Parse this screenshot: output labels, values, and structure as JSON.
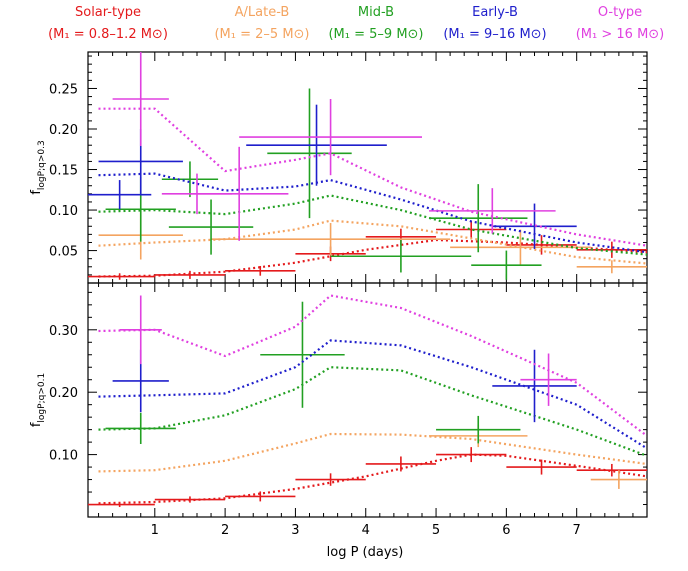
{
  "legend": [
    {
      "name": "Solar-type",
      "mass": "(M₁ = 0.8–1.2 M⊙)",
      "color": "#e41a1c"
    },
    {
      "name": "A/Late-B",
      "mass": "(M₁ = 2–5 M⊙)",
      "color": "#f4a460"
    },
    {
      "name": "Mid-B",
      "mass": "(M₁ = 5–9 M⊙)",
      "color": "#22a022"
    },
    {
      "name": "Early-B",
      "mass": "(M₁ = 9–16 M⊙)",
      "color": "#1f1fcc"
    },
    {
      "name": "O-type",
      "mass": "(M₁ > 16 M⊙)",
      "color": "#e040e0"
    }
  ],
  "chart_data": [
    {
      "type": "scatter",
      "panel": "top",
      "ylabel_main": "f",
      "ylabel_sub": "logP;q>0.3",
      "xlim": [
        0.05,
        8.0
      ],
      "ylim": [
        0.01,
        0.295
      ],
      "yticks": [
        0.05,
        0.1,
        0.15,
        0.2,
        0.25
      ],
      "ytick_labels": [
        "0.05",
        "0.10",
        "0.15",
        "0.20",
        "0.25"
      ],
      "series": [
        {
          "color": "#e41a1c",
          "curve": [
            [
              0.2,
              0.018
            ],
            [
              1.0,
              0.019
            ],
            [
              2.0,
              0.024
            ],
            [
              3.0,
              0.035
            ],
            [
              4.0,
              0.051
            ],
            [
              5.0,
              0.063
            ],
            [
              6.0,
              0.06
            ],
            [
              7.0,
              0.054
            ],
            [
              8.0,
              0.048
            ]
          ],
          "points": [
            {
              "x": 0.5,
              "y": 0.018,
              "xerr": 0.5,
              "yerr": 0.004
            },
            {
              "x": 1.5,
              "y": 0.02,
              "xerr": 0.5,
              "yerr": 0.005
            },
            {
              "x": 2.5,
              "y": 0.025,
              "xerr": 0.5,
              "yerr": 0.006
            },
            {
              "x": 3.5,
              "y": 0.046,
              "xerr": 0.5,
              "yerr": 0.009
            },
            {
              "x": 4.5,
              "y": 0.067,
              "xerr": 0.5,
              "yerr": 0.01
            },
            {
              "x": 5.5,
              "y": 0.076,
              "xerr": 0.5,
              "yerr": 0.011
            },
            {
              "x": 6.5,
              "y": 0.057,
              "xerr": 0.5,
              "yerr": 0.012
            },
            {
              "x": 7.5,
              "y": 0.051,
              "xerr": 0.5,
              "yerr": 0.01
            }
          ]
        },
        {
          "color": "#f4a460",
          "curve": [
            [
              0.2,
              0.056
            ],
            [
              1.0,
              0.06
            ],
            [
              2.0,
              0.064
            ],
            [
              3.0,
              0.076
            ],
            [
              3.5,
              0.087
            ],
            [
              4.5,
              0.08
            ],
            [
              5.5,
              0.065
            ],
            [
              7.0,
              0.042
            ],
            [
              8.0,
              0.034
            ]
          ],
          "points": [
            {
              "x": 0.8,
              "y": 0.069,
              "xerr": 0.6,
              "yerr": 0.03
            },
            {
              "x": 3.5,
              "y": 0.064,
              "xerr": 1.7,
              "yerr": 0.02
            },
            {
              "x": 6.2,
              "y": 0.054,
              "xerr": 1.0,
              "yerr": 0.022
            },
            {
              "x": 7.5,
              "y": 0.03,
              "xerr": 0.5,
              "yerr": 0.008
            }
          ]
        },
        {
          "color": "#22a022",
          "curve": [
            [
              0.2,
              0.098
            ],
            [
              1.0,
              0.1
            ],
            [
              2.0,
              0.095
            ],
            [
              3.0,
              0.108
            ],
            [
              3.5,
              0.118
            ],
            [
              4.5,
              0.1
            ],
            [
              5.5,
              0.076
            ],
            [
              7.0,
              0.053
            ],
            [
              8.0,
              0.045
            ]
          ],
          "points": [
            {
              "x": 0.8,
              "y": 0.101,
              "xerr": 0.5,
              "yerr": 0.04
            },
            {
              "x": 1.5,
              "y": 0.138,
              "xerr": 0.4,
              "yerr": 0.022
            },
            {
              "x": 1.8,
              "y": 0.079,
              "xerr": 0.6,
              "yerr": 0.034
            },
            {
              "x": 3.2,
              "y": 0.17,
              "xerr": 0.6,
              "yerr": 0.08
            },
            {
              "x": 4.5,
              "y": 0.043,
              "xerr": 1.0,
              "yerr": 0.02
            },
            {
              "x": 5.6,
              "y": 0.09,
              "xerr": 0.7,
              "yerr": 0.042
            },
            {
              "x": 6.0,
              "y": 0.032,
              "xerr": 0.5,
              "yerr": 0.018
            }
          ]
        },
        {
          "color": "#1f1fcc",
          "curve": [
            [
              0.2,
              0.143
            ],
            [
              1.0,
              0.145
            ],
            [
              2.0,
              0.124
            ],
            [
              3.0,
              0.129
            ],
            [
              3.5,
              0.137
            ],
            [
              4.5,
              0.113
            ],
            [
              5.5,
              0.086
            ],
            [
              7.0,
              0.06
            ],
            [
              8.0,
              0.048
            ]
          ],
          "points": [
            {
              "x": 0.8,
              "y": 0.16,
              "xerr": 0.6,
              "yerr": 0.04
            },
            {
              "x": 0.5,
              "y": 0.119,
              "xerr": 0.45,
              "yerr": 0.018
            },
            {
              "x": 3.3,
              "y": 0.18,
              "xerr": 1.0,
              "yerr": 0.05
            },
            {
              "x": 6.4,
              "y": 0.08,
              "xerr": 0.6,
              "yerr": 0.028
            }
          ]
        },
        {
          "color": "#e040e0",
          "curve": [
            [
              0.2,
              0.225
            ],
            [
              1.0,
              0.225
            ],
            [
              2.0,
              0.148
            ],
            [
              3.0,
              0.162
            ],
            [
              3.5,
              0.17
            ],
            [
              4.5,
              0.128
            ],
            [
              5.5,
              0.098
            ],
            [
              7.0,
              0.07
            ],
            [
              8.0,
              0.056
            ]
          ],
          "points": [
            {
              "x": 0.8,
              "y": 0.237,
              "xerr": 0.4,
              "yerr": 0.058
            },
            {
              "x": 1.6,
              "y": 0.12,
              "xerr": 0.5,
              "yerr": 0.025
            },
            {
              "x": 2.2,
              "y": 0.12,
              "xerr": 0.7,
              "yerr": 0.058
            },
            {
              "x": 3.5,
              "y": 0.19,
              "xerr": 1.3,
              "yerr": 0.047
            },
            {
              "x": 5.8,
              "y": 0.099,
              "xerr": 0.9,
              "yerr": 0.028
            }
          ]
        }
      ]
    },
    {
      "type": "scatter",
      "panel": "bottom",
      "ylabel_main": "f",
      "ylabel_sub": "logP;q>0.1",
      "xlabel": "log P (days)",
      "xlim": [
        0.05,
        8.0
      ],
      "ylim": [
        0.0,
        0.375
      ],
      "xticks": [
        1,
        2,
        3,
        4,
        5,
        6,
        7
      ],
      "xtick_labels": [
        "1",
        "2",
        "3",
        "4",
        "5",
        "6",
        "7"
      ],
      "yticks": [
        0.1,
        0.2,
        0.3
      ],
      "ytick_labels": [
        "0.10",
        "0.20",
        "0.30"
      ],
      "series": [
        {
          "color": "#e41a1c",
          "curve": [
            [
              0.2,
              0.022
            ],
            [
              1.0,
              0.024
            ],
            [
              2.0,
              0.03
            ],
            [
              3.0,
              0.045
            ],
            [
              4.0,
              0.065
            ],
            [
              5.0,
              0.09
            ],
            [
              5.5,
              0.1
            ],
            [
              6.0,
              0.098
            ],
            [
              7.0,
              0.082
            ],
            [
              8.0,
              0.065
            ]
          ],
          "points": [
            {
              "x": 0.5,
              "y": 0.02,
              "xerr": 0.5,
              "yerr": 0.004
            },
            {
              "x": 1.5,
              "y": 0.028,
              "xerr": 0.5,
              "yerr": 0.005
            },
            {
              "x": 2.5,
              "y": 0.033,
              "xerr": 0.5,
              "yerr": 0.008
            },
            {
              "x": 3.5,
              "y": 0.06,
              "xerr": 0.5,
              "yerr": 0.01
            },
            {
              "x": 4.5,
              "y": 0.085,
              "xerr": 0.5,
              "yerr": 0.012
            },
            {
              "x": 5.5,
              "y": 0.1,
              "xerr": 0.5,
              "yerr": 0.012
            },
            {
              "x": 6.5,
              "y": 0.08,
              "xerr": 0.5,
              "yerr": 0.012
            },
            {
              "x": 7.5,
              "y": 0.075,
              "xerr": 0.5,
              "yerr": 0.01
            }
          ]
        },
        {
          "color": "#f4a460",
          "curve": [
            [
              0.2,
              0.073
            ],
            [
              1.0,
              0.075
            ],
            [
              2.0,
              0.09
            ],
            [
              3.0,
              0.118
            ],
            [
              3.5,
              0.133
            ],
            [
              4.5,
              0.132
            ],
            [
              5.5,
              0.125
            ],
            [
              7.0,
              0.1
            ],
            [
              8.0,
              0.085
            ]
          ],
          "points": [
            {
              "x": 5.6,
              "y": 0.13,
              "xerr": 0.7,
              "yerr": 0.018
            },
            {
              "x": 7.6,
              "y": 0.06,
              "xerr": 0.4,
              "yerr": 0.015
            }
          ]
        },
        {
          "color": "#22a022",
          "curve": [
            [
              0.2,
              0.14
            ],
            [
              1.0,
              0.142
            ],
            [
              2.0,
              0.163
            ],
            [
              3.0,
              0.205
            ],
            [
              3.5,
              0.24
            ],
            [
              4.5,
              0.235
            ],
            [
              5.5,
              0.195
            ],
            [
              7.0,
              0.14
            ],
            [
              8.0,
              0.098
            ]
          ],
          "points": [
            {
              "x": 0.8,
              "y": 0.142,
              "xerr": 0.5,
              "yerr": 0.025
            },
            {
              "x": 3.1,
              "y": 0.26,
              "xerr": 0.6,
              "yerr": 0.085
            },
            {
              "x": 5.6,
              "y": 0.14,
              "xerr": 0.6,
              "yerr": 0.022
            }
          ]
        },
        {
          "color": "#1f1fcc",
          "curve": [
            [
              0.2,
              0.193
            ],
            [
              1.0,
              0.195
            ],
            [
              2.0,
              0.198
            ],
            [
              3.0,
              0.24
            ],
            [
              3.5,
              0.283
            ],
            [
              4.5,
              0.275
            ],
            [
              5.5,
              0.24
            ],
            [
              7.0,
              0.18
            ],
            [
              8.0,
              0.11
            ]
          ],
          "points": [
            {
              "x": 0.8,
              "y": 0.218,
              "xerr": 0.4,
              "yerr": 0.05
            },
            {
              "x": 6.4,
              "y": 0.21,
              "xerr": 0.6,
              "yerr": 0.058
            }
          ]
        },
        {
          "color": "#e040e0",
          "curve": [
            [
              0.2,
              0.298
            ],
            [
              1.0,
              0.3
            ],
            [
              2.0,
              0.258
            ],
            [
              3.0,
              0.305
            ],
            [
              3.5,
              0.355
            ],
            [
              4.5,
              0.335
            ],
            [
              5.5,
              0.29
            ],
            [
              7.0,
              0.215
            ],
            [
              8.0,
              0.13
            ]
          ],
          "points": [
            {
              "x": 0.8,
              "y": 0.3,
              "xerr": 0.3,
              "yerr": 0.055
            },
            {
              "x": 6.6,
              "y": 0.22,
              "xerr": 0.4,
              "yerr": 0.042
            }
          ]
        }
      ]
    }
  ]
}
